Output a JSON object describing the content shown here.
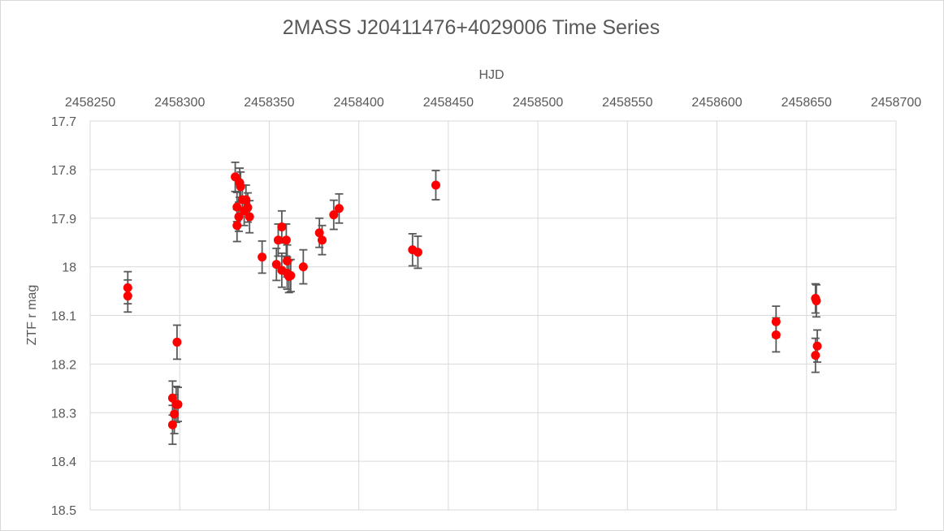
{
  "chart_data": {
    "type": "scatter",
    "title": "2MASS J20411476+4029006 Time Series",
    "xlabel": "HJD",
    "ylabel": "ZTF r mag",
    "xlim": [
      2458250,
      2458700
    ],
    "ylim": [
      17.7,
      18.5
    ],
    "y_reversed": true,
    "x_axis_position": "top",
    "x_ticks": [
      "2458250",
      "2458300",
      "2458350",
      "2458400",
      "2458450",
      "2458500",
      "2458550",
      "2458600",
      "2458650",
      "2458700"
    ],
    "y_ticks": [
      "17.7",
      "17.8",
      "17.9",
      "18",
      "18.1",
      "18.2",
      "18.3",
      "18.4",
      "18.5"
    ],
    "grid": true,
    "marker_color": "#ff0000",
    "errorbar_color": "#595959",
    "series": [
      {
        "x": [
          2458271.0,
          2458271.0,
          2458296.0,
          2458297.0,
          2458298.0,
          2458296.0,
          2458299.0,
          2458298.5,
          2458331.0,
          2458332.0,
          2458333.0,
          2458333.5,
          2458334.0,
          2458335.0,
          2458336.0,
          2458337.0,
          2458338.0,
          2458332.0,
          2458339.0,
          2458346.0,
          2458354.0,
          2458355.0,
          2458357.0,
          2458357.0,
          2458359.5,
          2458360.0,
          2458360.0,
          2458361.0,
          2458362.0,
          2458369.0,
          2458378.0,
          2458379.5,
          2458386.0,
          2458389.0,
          2458430.0,
          2458433.0,
          2458443.0,
          2458633.0,
          2458633.0,
          2458655.0,
          2458655.5,
          2458655.0,
          2458656.0
        ],
        "y": [
          18.043,
          18.06,
          18.27,
          18.303,
          18.283,
          18.325,
          18.283,
          18.155,
          17.815,
          17.877,
          17.897,
          17.827,
          17.835,
          17.862,
          17.885,
          17.862,
          17.878,
          17.915,
          17.897,
          17.98,
          17.995,
          17.945,
          17.918,
          18.007,
          17.945,
          18.013,
          17.988,
          18.02,
          18.018,
          18.0,
          17.93,
          17.945,
          17.893,
          17.88,
          17.965,
          17.97,
          17.832,
          18.113,
          18.14,
          18.065,
          18.07,
          18.182,
          18.163
        ],
        "yerr": [
          0.033,
          0.033,
          0.035,
          0.04,
          0.037,
          0.04,
          0.035,
          0.035,
          0.03,
          0.03,
          0.03,
          0.03,
          0.03,
          0.03,
          0.03,
          0.03,
          0.03,
          0.033,
          0.033,
          0.033,
          0.033,
          0.033,
          0.033,
          0.035,
          0.033,
          0.033,
          0.033,
          0.033,
          0.033,
          0.035,
          0.03,
          0.03,
          0.03,
          0.03,
          0.033,
          0.033,
          0.03,
          0.032,
          0.035,
          0.03,
          0.033,
          0.035,
          0.033
        ]
      }
    ]
  }
}
